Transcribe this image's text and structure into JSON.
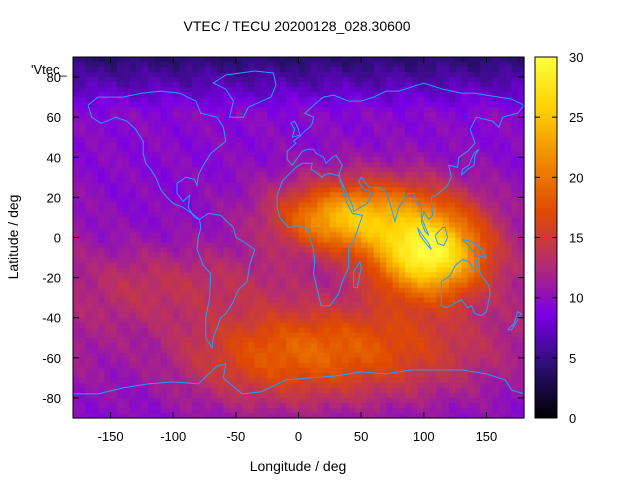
{
  "chart_data": {
    "type": "heatmap",
    "title": "VTEC / TECU 20200128_028.30600",
    "xlabel": "Longitude / deg",
    "ylabel": "Latitude / deg",
    "key_label": "'Vtec_",
    "xlim": [
      -180,
      180
    ],
    "ylim": [
      -90,
      90
    ],
    "x_ticks": [
      -150,
      -100,
      -50,
      0,
      50,
      100,
      150
    ],
    "y_ticks": [
      -80,
      -60,
      -40,
      -20,
      0,
      20,
      40,
      60,
      80
    ],
    "colorbar": {
      "min": 0,
      "max": 30,
      "ticks": [
        0,
        5,
        10,
        15,
        20,
        25,
        30
      ],
      "colormap": [
        "#000000",
        "#2b0f72",
        "#7a00e6",
        "#b52d6e",
        "#e04a00",
        "#f08a00",
        "#ffd000",
        "#ffff40"
      ]
    },
    "features": [
      {
        "lon": 105,
        "lat": -10,
        "amp": 18,
        "slon": 32,
        "slat": 14
      },
      {
        "lon": 60,
        "lat": 12,
        "amp": 10,
        "slon": 55,
        "slat": 14
      },
      {
        "lon": 30,
        "lat": 8,
        "amp": 6,
        "slon": 30,
        "slat": 10
      },
      {
        "lon": 60,
        "lat": -55,
        "amp": 7,
        "slon": 75,
        "slat": 18
      },
      {
        "lon": -30,
        "lat": -60,
        "amp": 5,
        "slon": 55,
        "slat": 18
      },
      {
        "lon": -130,
        "lat": -25,
        "amp": 3.5,
        "slon": 40,
        "slat": 15
      },
      {
        "lon": -50,
        "lat": -20,
        "amp": 2.5,
        "slon": 40,
        "slat": 12
      }
    ],
    "base_value": 9.5,
    "polar_cap": {
      "lat_start": 62,
      "min_value": 4
    }
  }
}
